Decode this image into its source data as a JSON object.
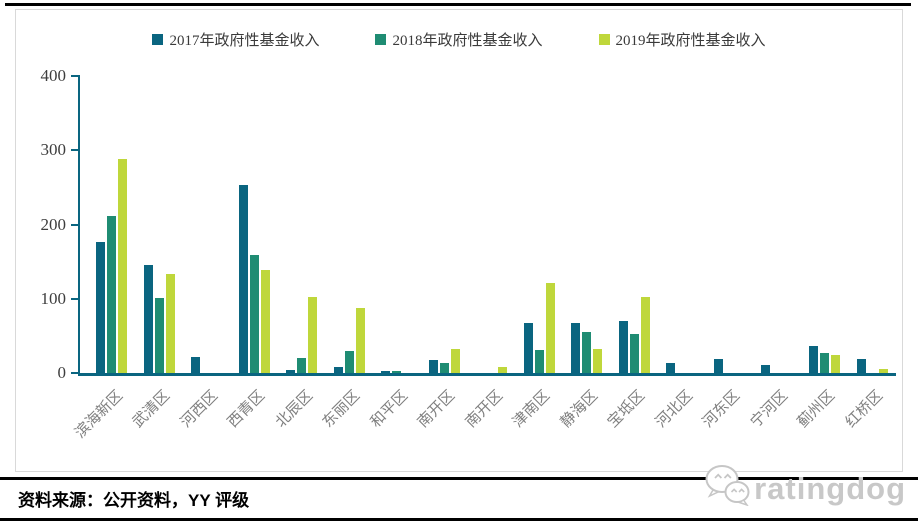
{
  "footer": {
    "source_text": "资料来源：公开资料，YY 评级"
  },
  "logo": {
    "text": "ratingdog",
    "icon": "wechat-bubbles-icon",
    "color": "#c8c8c8"
  },
  "chart_data": {
    "type": "bar",
    "title": "",
    "xlabel": "",
    "ylabel": "",
    "categories": [
      "滨海新区",
      "武清区",
      "河西区",
      "西青区",
      "北辰区",
      "东丽区",
      "和平区",
      "南开区",
      "南开区",
      "津南区",
      "静海区",
      "宝坻区",
      "河北区",
      "河东区",
      "宁河区",
      "蓟州区",
      "红桥区"
    ],
    "series": [
      {
        "name": "2017年政府性基金收入",
        "color": "#0a6580",
        "values": [
          176,
          146,
          22,
          253,
          4,
          8,
          3,
          18,
          0,
          67,
          67,
          70,
          13,
          19,
          11,
          37,
          19
        ]
      },
      {
        "name": "2018年政府性基金收入",
        "color": "#1f8c73",
        "values": [
          211,
          101,
          0,
          159,
          20,
          30,
          3,
          14,
          0,
          31,
          55,
          53,
          0,
          0,
          0,
          27,
          0
        ]
      },
      {
        "name": "2019年政府性基金收入",
        "color": "#bfd73b",
        "values": [
          288,
          134,
          0,
          139,
          102,
          87,
          0,
          32,
          8,
          121,
          33,
          103,
          0,
          0,
          0,
          24,
          5
        ]
      }
    ],
    "ylim": [
      0,
      400
    ],
    "yticks": [
      0,
      100,
      200,
      300,
      400
    ],
    "grid": false,
    "legend_position": "top",
    "axis_color": "#0a6580",
    "tick_label_color": "#3d3d3d",
    "category_label_color": "#7f7f7f"
  }
}
